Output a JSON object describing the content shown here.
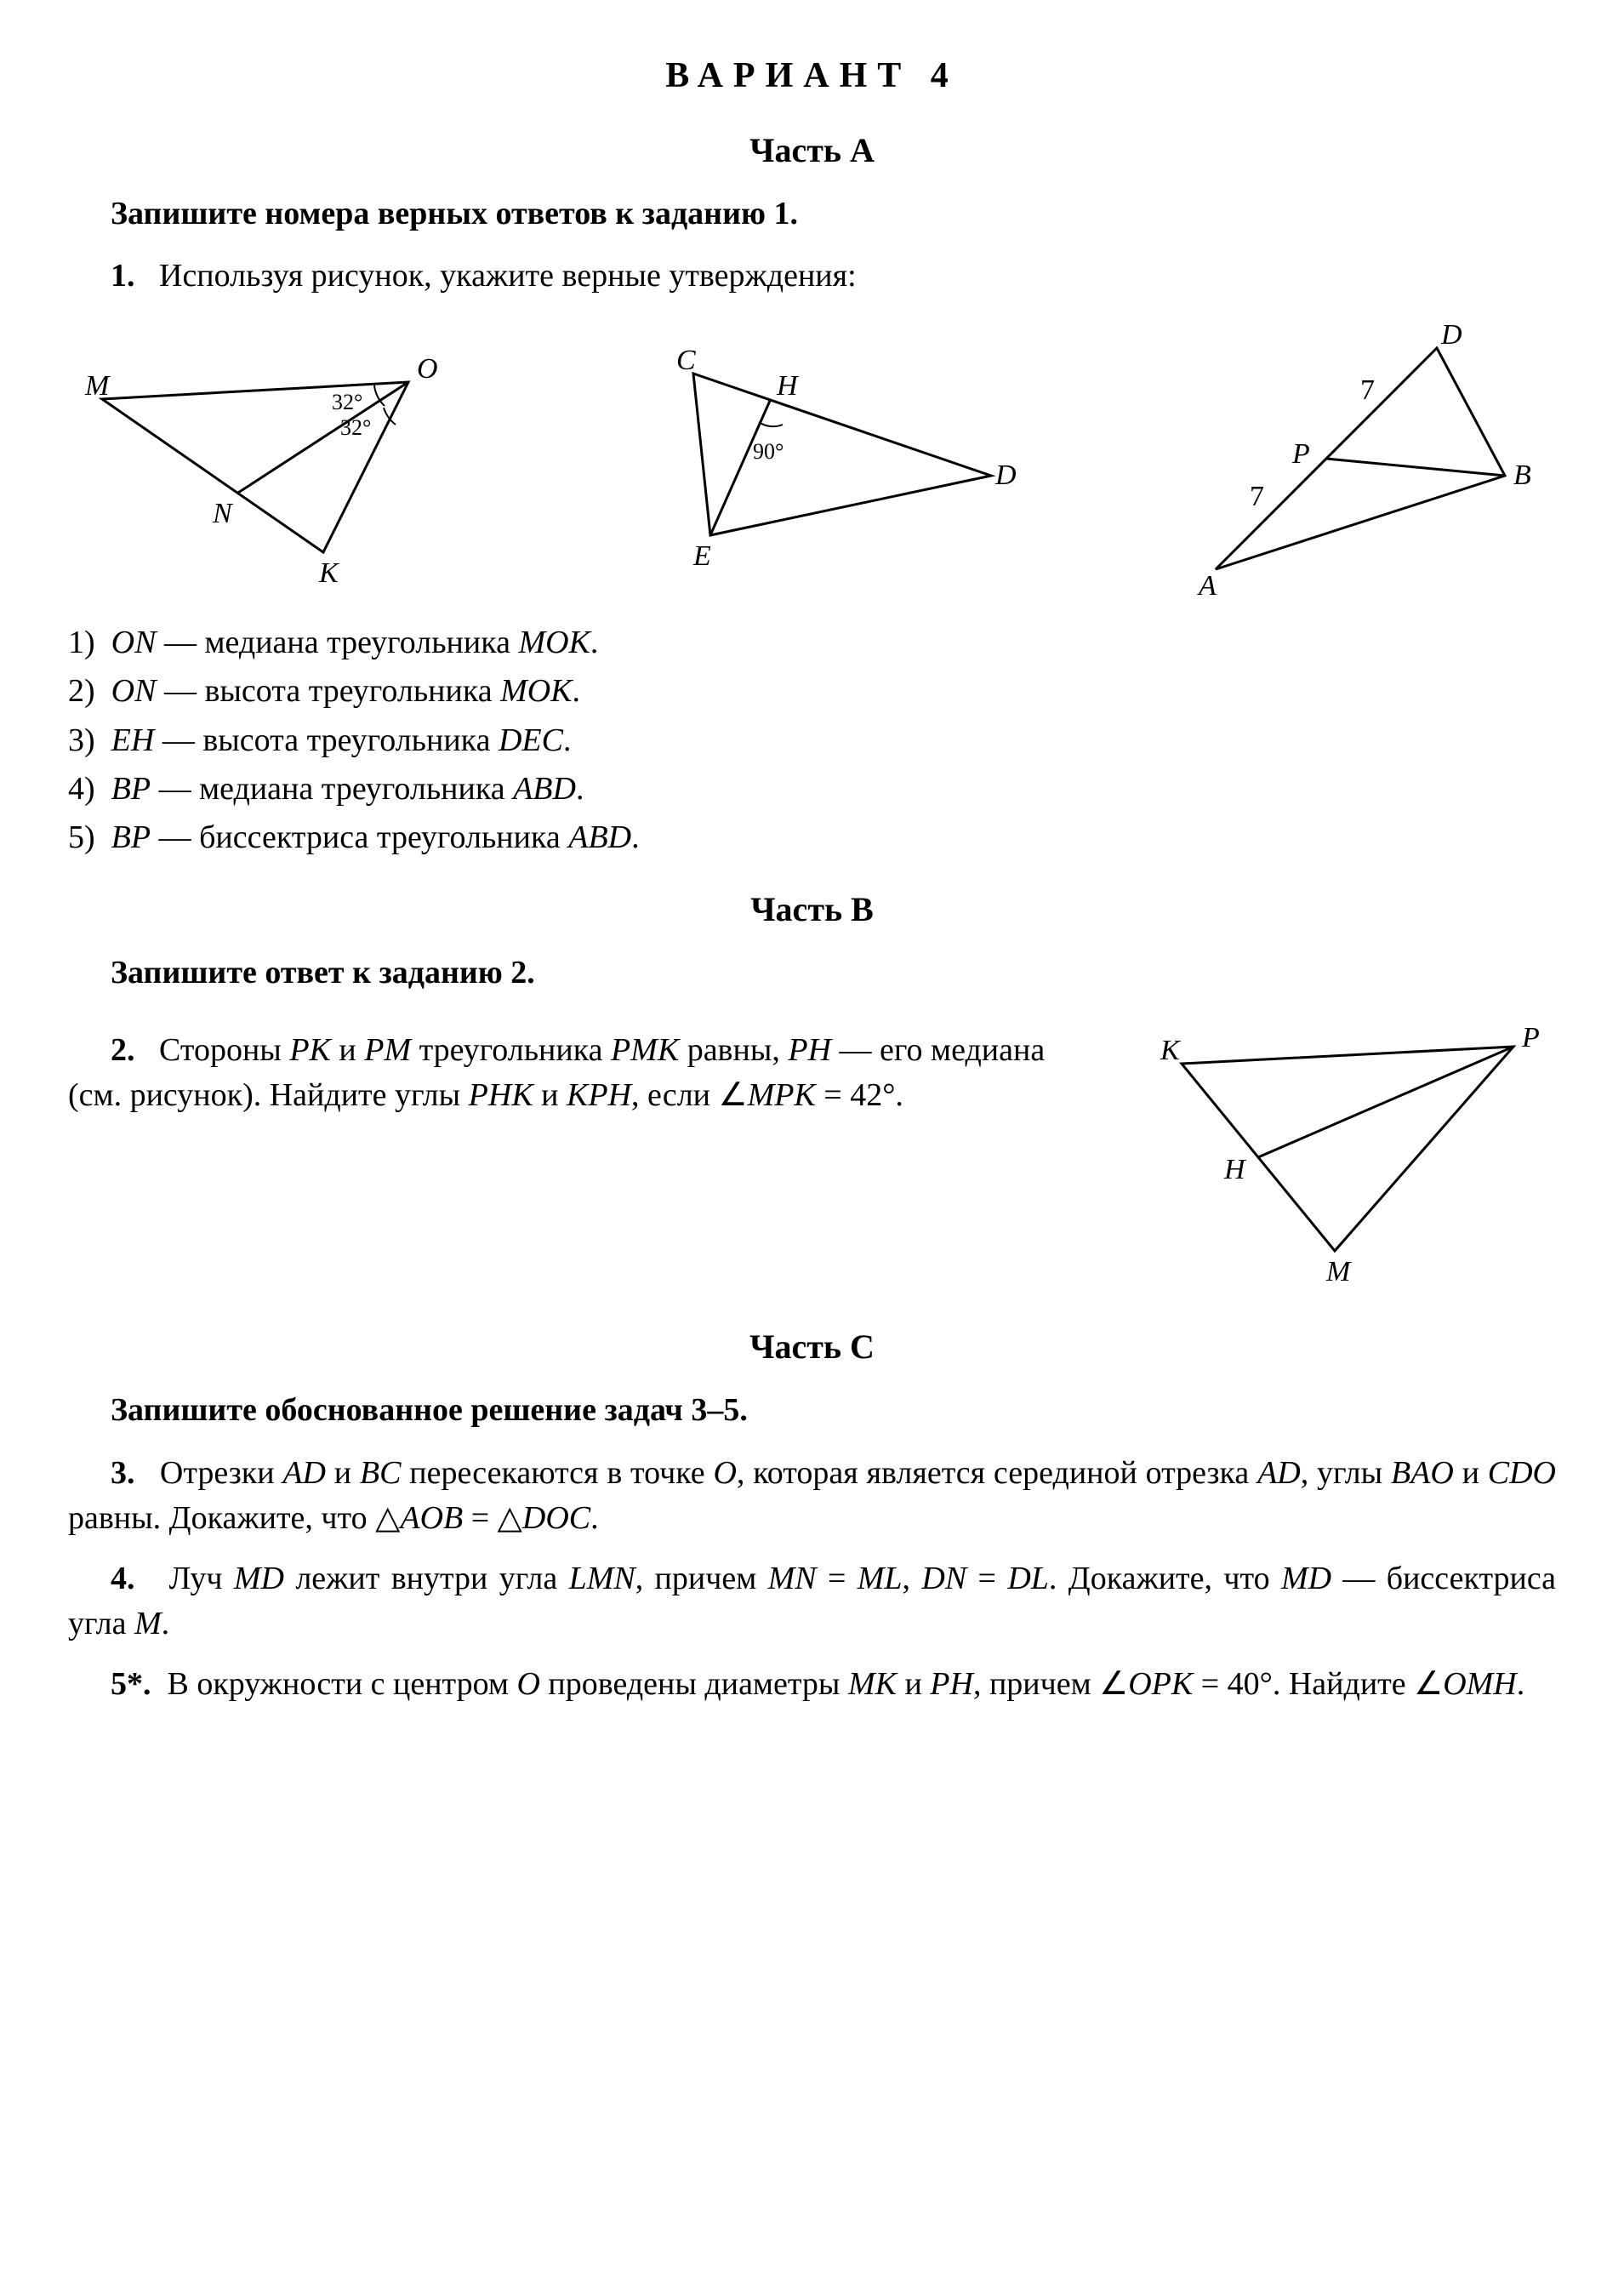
{
  "title": "ВАРИАНТ 4",
  "partA": {
    "heading": "Часть A",
    "instruction": "Запишите номера верных ответов к заданию 1.",
    "lead_num": "1.",
    "lead_text": "Используя рисунок, укажите верные утверждения:",
    "figures": {
      "fig1": {
        "M": "M",
        "O": "O",
        "N": "N",
        "K": "K",
        "angle1": "32°",
        "angle2": "32°"
      },
      "fig2": {
        "C": "C",
        "H": "H",
        "E": "E",
        "D": "D",
        "angle": "90°"
      },
      "fig3": {
        "A": "A",
        "B": "B",
        "D": "D",
        "P": "P",
        "len1": "7",
        "len2": "7"
      }
    },
    "statements": [
      {
        "num": "1)",
        "body_html": "<span class='it'>ON</span> — медиана треугольника <span class='it'>MOK</span>."
      },
      {
        "num": "2)",
        "body_html": "<span class='it'>ON</span> — высота треугольника <span class='it'>MOK</span>."
      },
      {
        "num": "3)",
        "body_html": "<span class='it'>EH</span> — высота треугольника <span class='it'>DEC</span>."
      },
      {
        "num": "4)",
        "body_html": "<span class='it'>BP</span> — медиана треугольника <span class='it'>ABD</span>."
      },
      {
        "num": "5)",
        "body_html": "<span class='it'>BP</span> — биссектриса треугольника <span class='it'>ABD</span>."
      }
    ]
  },
  "partB": {
    "heading": "Часть B",
    "instruction": "Запишите ответ к заданию 2.",
    "lead_num": "2.",
    "body_html": "Стороны <span class='it'>PK</span> и <span class='it'>PM</span> треугольника <span class='it'>PMK</span> равны, <span class='it'>PH</span> — его медиана (см. рисунок). Найдите углы <span class='it'>PHK</span> и <span class='it'>KPH</span>, если ∠<span class='it'>MPK</span> = 42°.",
    "figure": {
      "K": "K",
      "P": "P",
      "H": "H",
      "M": "M"
    }
  },
  "partC": {
    "heading": "Часть C",
    "instruction": "Запишите обоснованное решение задач 3–5.",
    "p3_num": "3.",
    "p3_html": "Отрезки <span class='it'>AD</span> и <span class='it'>BC</span> пересекаются в точке <span class='it'>O</span>, которая является серединой отрезка <span class='it'>AD</span>, углы <span class='it'>BAO</span> и <span class='it'>CDO</span> равны. Докажите, что △<span class='it'>AOB</span> = △<span class='it'>DOC</span>.",
    "p4_num": "4.",
    "p4_html": "Луч <span class='it'>MD</span> лежит внутри угла <span class='it'>LMN</span>, причем <span class='it'>MN</span> = <span class='it'>ML</span>, <span class='it'>DN</span> = <span class='it'>DL</span>. Докажите, что <span class='it'>MD</span> — биссектриса угла <span class='it'>M</span>.",
    "p5_num": "5*.",
    "p5_html": "В окружности с центром <span class='it'>O</span> проведены диаметры <span class='it'>MK</span> и <span class='it'>PH</span>, причем ∠<span class='it'>OPK</span> = 40°. Найдите ∠<span class='it'>OMH</span>."
  }
}
